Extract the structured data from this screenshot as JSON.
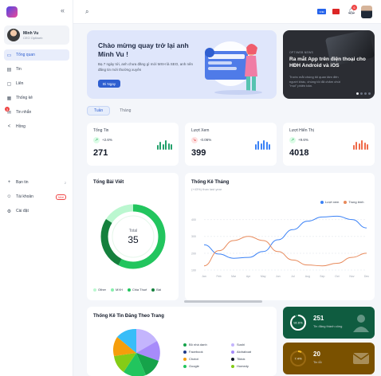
{
  "sidebar": {
    "user": {
      "name": "Minh Vu",
      "role": "CEO Optiweb"
    },
    "items": [
      {
        "label": "Tổng quan",
        "icon": "dashboard-icon",
        "active": true
      },
      {
        "label": "Tin",
        "icon": "news-icon",
        "active": false
      },
      {
        "label": "Liên",
        "icon": "contact-icon",
        "active": false
      },
      {
        "label": "Thống kê",
        "icon": "chart-icon",
        "active": false
      },
      {
        "label": "Tin nhắn",
        "icon": "message-icon",
        "active": false,
        "badge": "3"
      },
      {
        "label": "Hồng",
        "icon": "share-icon",
        "active": false
      }
    ],
    "bottom": [
      {
        "label": "Bạn tin",
        "icon": "add-icon",
        "count": "2"
      },
      {
        "label": "Tài khoản",
        "icon": "users-icon",
        "tag": "Mới"
      },
      {
        "label": "Cài đặt",
        "icon": "gear-icon"
      }
    ]
  },
  "topbar": {
    "lang_badge": "VNĐ",
    "notif_count": "6"
  },
  "welcome": {
    "title": "Chào mừng quay trở lại anh Minh Vu !",
    "subtitle": "Bạ 7 ngày tới, anh chưa đăng gì mới MXH là SEO, anh nên đăng tin mới thường xuyên",
    "button": "Đi Ngay"
  },
  "promo": {
    "kicker": "OPTIWEB NEWS",
    "title": "Ra mắt App trên điện thoại cho HĐH Android và iOS",
    "description": "Trước mắt chúng tôi quan tâm đến người khác, chúng tôi đã chăm chút \"mọi\" phiên bản."
  },
  "tabs": [
    "Tuần",
    "Tháng"
  ],
  "stats": [
    {
      "label": "Tổng Tin",
      "trend": "+2.6%",
      "value": "271",
      "trend_dir": "up",
      "color": "#22a06b",
      "bars": [
        0.5,
        0.85,
        0.6,
        1.0,
        0.7,
        0.55
      ]
    },
    {
      "label": "Lượt Xem",
      "trend": "-0.06%",
      "value": "399",
      "trend_dir": "down",
      "color": "#3b82f6",
      "bars": [
        0.55,
        0.9,
        0.7,
        1.0,
        0.8,
        0.6
      ]
    },
    {
      "label": "Lượt Hiển Thị",
      "trend": "+9.6%",
      "value": "4018",
      "trend_dir": "up",
      "color": "#ef6b4a",
      "bars": [
        0.5,
        0.85,
        0.65,
        1.0,
        0.75,
        0.55
      ]
    }
  ],
  "posts_card": {
    "title": "Tổng Bài Viết",
    "center_label": "Total",
    "center_value": "35",
    "legend": [
      {
        "label": "Other",
        "color": "#bbf7d0"
      },
      {
        "label": "MXH",
        "color": "#86efac"
      },
      {
        "label": "Chia Thuế",
        "color": "#22c55e"
      },
      {
        "label": "Bài",
        "color": "#15803d"
      }
    ]
  },
  "chart_data": {
    "type": "line",
    "title": "Thống Kê Tháng",
    "subtitle": "(+43%) than last year",
    "x": [
      "Jan",
      "Feb",
      "Mar",
      "Apr",
      "May",
      "Jun",
      "Jul",
      "Aug",
      "Sep",
      "Oct",
      "Nov",
      "Dec"
    ],
    "yticks": [
      "100",
      "200",
      "300",
      "400"
    ],
    "ylim": [
      100,
      450
    ],
    "series": [
      {
        "name": "Lượt xem",
        "color": "#3b82f6",
        "values": [
          250,
          195,
          170,
          175,
          210,
          280,
          340,
          390,
          415,
          420,
          400,
          350
        ]
      },
      {
        "name": "Trung bình",
        "color": "#e88a5b",
        "values": [
          125,
          215,
          275,
          300,
          275,
          210,
          160,
          130,
          125,
          140,
          175,
          200
        ]
      }
    ],
    "legend_position": "top-right",
    "grid": true
  },
  "share_card": {
    "title": "Thống Kê Tin Đăng Theo Trang",
    "legend": [
      {
        "label": "Bỏ nhà danh",
        "color": "#16a34a"
      },
      {
        "label": "Sushi",
        "color": "#c4b5fd"
      },
      {
        "label": "Facebook",
        "color": "#1e3a8a"
      },
      {
        "label": "Alohaboat",
        "color": "#a78bfa"
      },
      {
        "label": "Chotot",
        "color": "#f59e0b"
      },
      {
        "label": "Tiktok",
        "color": "#111827"
      },
      {
        "label": "Google",
        "color": "#22c55e"
      },
      {
        "label": "Homedy",
        "color": "#84cc16"
      }
    ]
  },
  "success_card": {
    "value": "251",
    "label": "Tin đăng thành công",
    "percent": "92.6%",
    "ring": 0.926
  },
  "failed_card": {
    "value": "20",
    "label": "Tin lỗi",
    "percent": "7.4%",
    "ring": 0.074
  }
}
